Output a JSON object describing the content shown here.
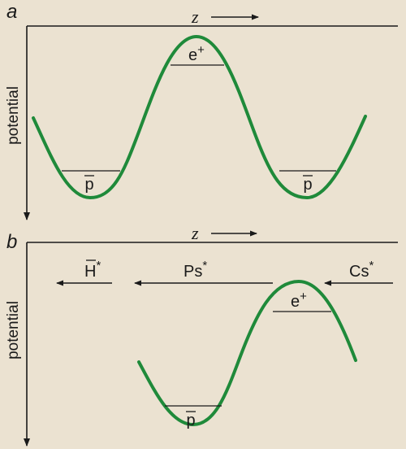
{
  "colors": {
    "background": "#ebe2d1",
    "curve": "#1f8a3a",
    "ink": "#1a1a1a"
  },
  "panel_a": {
    "label": "a",
    "z_label": "z",
    "ylabel": "potential",
    "well_label_left": "p",
    "well_label_right": "p",
    "peak_label": "e",
    "peak_label_sup": "+"
  },
  "panel_b": {
    "label": "b",
    "z_label": "z",
    "ylabel": "potential",
    "well_label": "p",
    "peak_label": "e",
    "peak_label_sup": "+",
    "species": {
      "h": "H",
      "h_sup": "*",
      "ps": "Ps",
      "ps_sup": "*",
      "cs": "Cs",
      "cs_sup": "*"
    }
  }
}
